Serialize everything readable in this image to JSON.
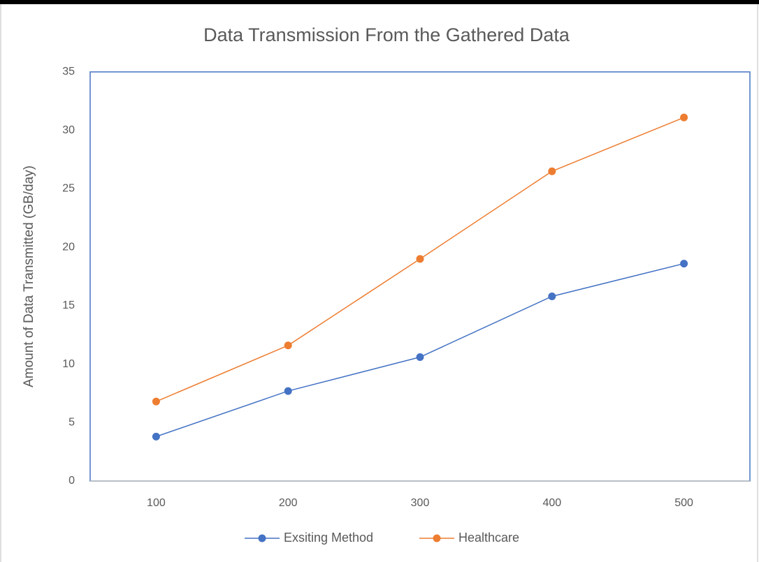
{
  "chart_data": {
    "type": "line",
    "title": "Data Transmission From the Gathered Data",
    "ylabel": "Amount of Data Transmitted (GB/day)",
    "categories": [
      "100",
      "200",
      "300",
      "400",
      "500"
    ],
    "series": [
      {
        "name": "Exsiting Method",
        "color": "#4472c4",
        "values": [
          3.8,
          7.7,
          10.6,
          15.8,
          18.6
        ]
      },
      {
        "name": "Healthcare",
        "color": "#ed7d31",
        "values": [
          6.8,
          11.6,
          19.0,
          26.5,
          31.1
        ]
      }
    ],
    "ylim": [
      0,
      35
    ],
    "yticks": [
      0,
      5,
      10,
      15,
      20,
      25,
      30,
      35
    ],
    "grid": false,
    "legend": "bottom"
  }
}
